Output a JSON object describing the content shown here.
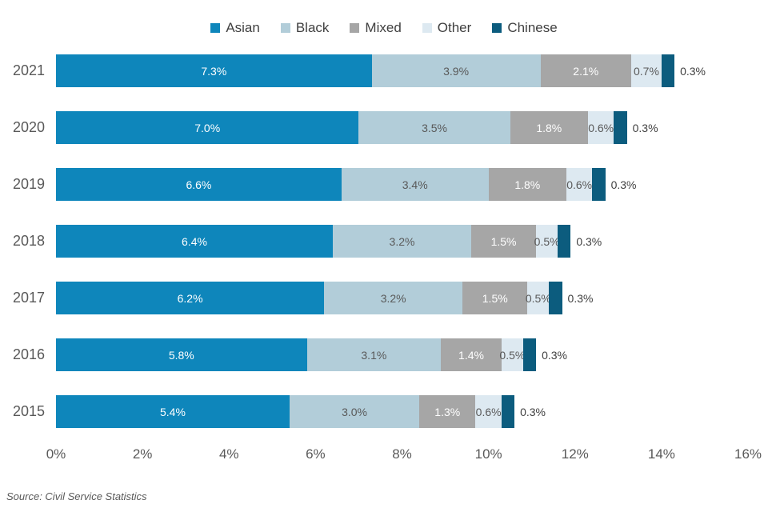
{
  "source_note": "Source: Civil Service Statistics",
  "chart_data": {
    "type": "bar",
    "orientation": "horizontal-stacked",
    "title": "",
    "xlabel": "",
    "ylabel": "",
    "categories": [
      "2021",
      "2020",
      "2019",
      "2018",
      "2017",
      "2016",
      "2015"
    ],
    "series": [
      {
        "name": "Asian",
        "color": "#0e86bb",
        "label_color": "#ffffff",
        "label_inside": true,
        "values": [
          7.3,
          7.0,
          6.6,
          6.4,
          6.2,
          5.8,
          5.4
        ]
      },
      {
        "name": "Black",
        "color": "#b2cdd9",
        "label_color": "#595959",
        "label_inside": true,
        "values": [
          3.9,
          3.5,
          3.4,
          3.2,
          3.2,
          3.1,
          3.0
        ]
      },
      {
        "name": "Mixed",
        "color": "#a6a6a6",
        "label_color": "#ffffff",
        "label_inside": true,
        "values": [
          2.1,
          1.8,
          1.8,
          1.5,
          1.5,
          1.4,
          1.3
        ]
      },
      {
        "name": "Other",
        "color": "#dde9f1",
        "label_color": "#595959",
        "label_inside": true,
        "values": [
          0.7,
          0.6,
          0.6,
          0.5,
          0.5,
          0.5,
          0.6
        ]
      },
      {
        "name": "Chinese",
        "color": "#0c5c7e",
        "label_color": "#404040",
        "label_inside": false,
        "values": [
          0.3,
          0.3,
          0.3,
          0.3,
          0.3,
          0.3,
          0.3
        ]
      }
    ],
    "value_suffix": "%",
    "x_ticks": [
      "0%",
      "2%",
      "4%",
      "6%",
      "8%",
      "10%",
      "12%",
      "14%",
      "16%"
    ],
    "xlim": [
      0,
      16
    ],
    "grid": false,
    "legend_position": "top"
  }
}
